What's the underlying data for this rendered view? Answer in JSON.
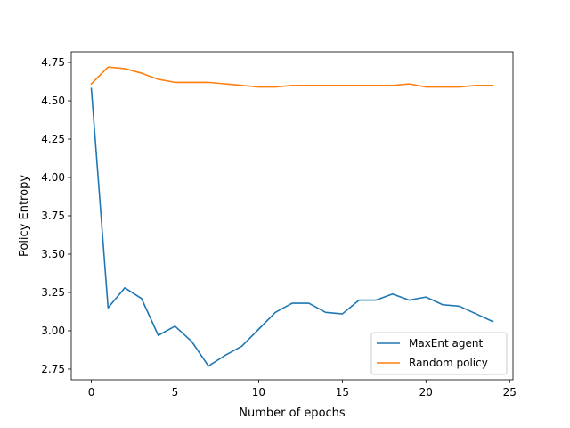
{
  "chart_data": {
    "type": "line",
    "title": "",
    "xlabel": "Number of epochs",
    "ylabel": "Policy Entropy",
    "xlim": [
      -1.2,
      25.2
    ],
    "ylim": [
      2.68,
      4.82
    ],
    "xticks": [
      0,
      5,
      10,
      15,
      20,
      25
    ],
    "yticks": [
      2.75,
      3.0,
      3.25,
      3.5,
      3.75,
      4.0,
      4.25,
      4.5,
      4.75
    ],
    "xtick_labels": [
      "0",
      "5",
      "10",
      "15",
      "20",
      "25"
    ],
    "ytick_labels": [
      "2.75",
      "3.00",
      "3.25",
      "3.50",
      "3.75",
      "4.00",
      "4.25",
      "4.50",
      "4.75"
    ],
    "grid": false,
    "legend_position": "bottom-right",
    "x": [
      0,
      1,
      2,
      3,
      4,
      5,
      6,
      7,
      8,
      9,
      10,
      11,
      12,
      13,
      14,
      15,
      16,
      17,
      18,
      19,
      20,
      21,
      22,
      23,
      24
    ],
    "series": [
      {
        "name": "MaxEnt agent",
        "color": "#1f77b4",
        "values": [
          4.58,
          3.15,
          3.28,
          3.21,
          2.97,
          3.03,
          2.93,
          2.77,
          2.84,
          2.9,
          3.01,
          3.12,
          3.18,
          3.18,
          3.12,
          3.11,
          3.2,
          3.2,
          3.24,
          3.2,
          3.22,
          3.17,
          3.16,
          3.11,
          3.06
        ]
      },
      {
        "name": "Random policy",
        "color": "#ff7f0e",
        "values": [
          4.61,
          4.72,
          4.71,
          4.68,
          4.64,
          4.62,
          4.62,
          4.62,
          4.61,
          4.6,
          4.59,
          4.59,
          4.6,
          4.6,
          4.6,
          4.6,
          4.6,
          4.6,
          4.6,
          4.61,
          4.59,
          4.59,
          4.59,
          4.6,
          4.6
        ]
      }
    ]
  }
}
